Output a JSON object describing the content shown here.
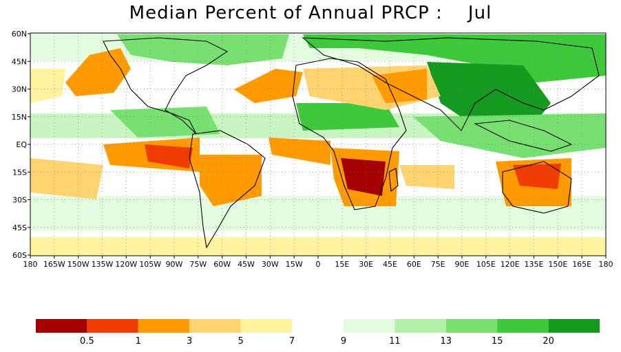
{
  "title": "Median Percent of Annual PRCP :    Jul",
  "map": {
    "lat_labels": [
      "60N",
      "45N",
      "30N",
      "15N",
      "EQ",
      "15S",
      "30S",
      "45S",
      "60S"
    ],
    "lon_labels": [
      "180",
      "165W",
      "150W",
      "135W",
      "120W",
      "105W",
      "90W",
      "75W",
      "60W",
      "45W",
      "30W",
      "15W",
      "0",
      "15E",
      "30E",
      "45E",
      "60E",
      "75E",
      "90E",
      "105E",
      "120E",
      "135E",
      "150E",
      "165E",
      "180"
    ]
  },
  "legend": {
    "left": {
      "colors": [
        "#a50000",
        "#f03c00",
        "#ff9a00",
        "#ffd470",
        "#fff3a0"
      ],
      "labels": [
        "0.5",
        "1",
        "3",
        "5",
        "7"
      ]
    },
    "right": {
      "colors": [
        "#e3fce0",
        "#b4f0a8",
        "#78e070",
        "#3ec83c",
        "#149a1e"
      ],
      "labels": [
        "9",
        "11",
        "13",
        "15",
        "20"
      ]
    }
  }
}
